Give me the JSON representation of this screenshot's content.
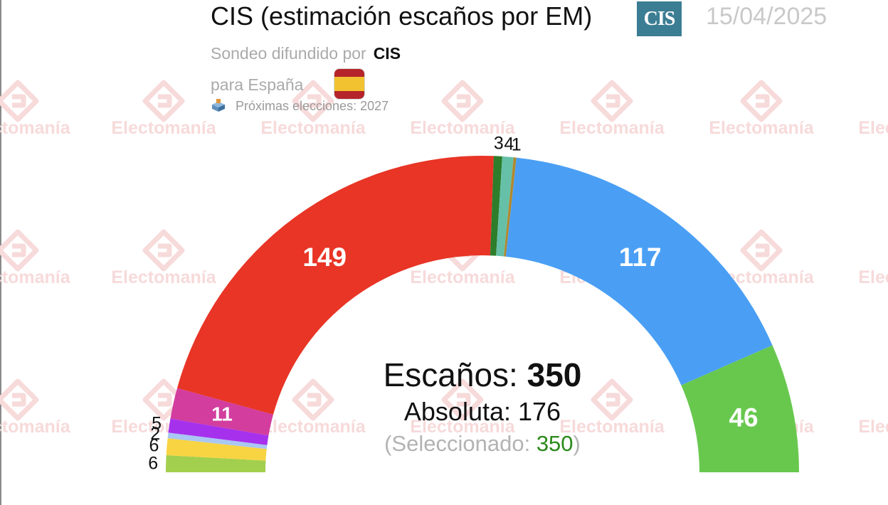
{
  "header": {
    "title": "CIS (estimación escaños por EM)",
    "pollster_logo_text": "CIS",
    "date": "15/04/2025",
    "sub_prefix": "Sondeo difundido por",
    "pollster": "CIS",
    "region_prefix": "para España",
    "next_elections": "Próximas elecciones: 2027",
    "flag_icon": "spain-flag-icon",
    "ballot_icon": "ballot-box-icon"
  },
  "watermark": {
    "text": "Electomanía",
    "color": "#f7dada"
  },
  "center": {
    "total_label": "Escaños:",
    "total_value": "350",
    "majority_label": "Absoluta:",
    "majority_value": "176",
    "selected_prefix": "(Seleccionado:",
    "selected_value": "350",
    "selected_suffix": ")"
  },
  "chart_data": {
    "type": "hemicycle",
    "total_seats": 350,
    "majority": 176,
    "segments": [
      {
        "seats": 6,
        "color": "#a3cf4e",
        "label": "6"
      },
      {
        "seats": 6,
        "color": "#f8d442",
        "label": "6"
      },
      {
        "seats": 2,
        "color": "#a9c7f2",
        "label": "2"
      },
      {
        "seats": 5,
        "color": "#a631ed",
        "label": "5"
      },
      {
        "seats": 11,
        "color": "#d23d9e",
        "label": "11"
      },
      {
        "seats": 149,
        "color": "#e83526",
        "label": "149"
      },
      {
        "seats": 3,
        "color": "#2d7d2a",
        "label": "3"
      },
      {
        "seats": 4,
        "color": "#66c0a8",
        "label": "4"
      },
      {
        "seats": 1,
        "color": "#b0892e",
        "label": "1"
      },
      {
        "seats": 117,
        "color": "#4a9ff5",
        "label": "117"
      },
      {
        "seats": 46,
        "color": "#68c84e",
        "label": "46"
      }
    ]
  }
}
